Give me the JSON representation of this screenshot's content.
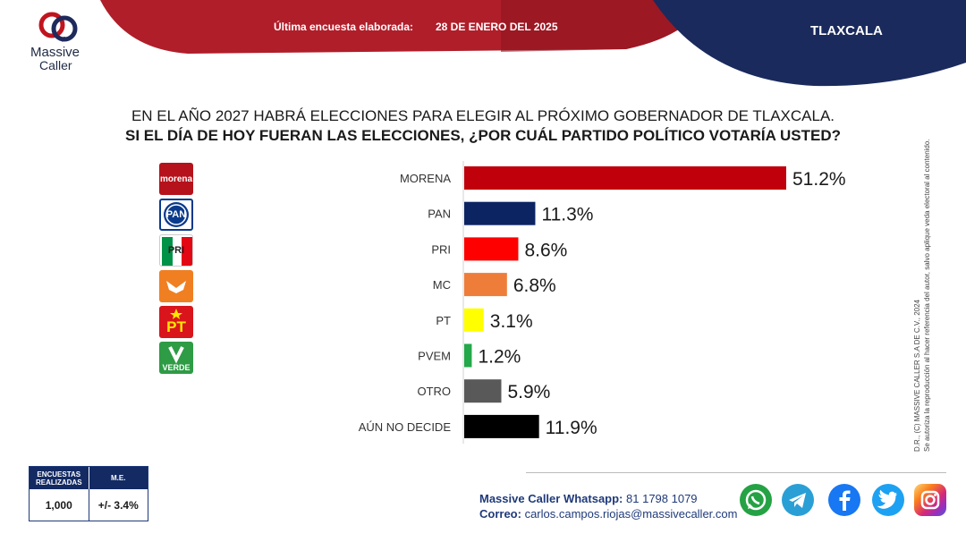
{
  "header": {
    "survey_label": "Última encuesta elaborada:",
    "survey_date": "28 DE ENERO DEL 2025",
    "region": "TLAXCALA"
  },
  "logo": {
    "word1": "Massive",
    "word2": "Caller"
  },
  "question": {
    "line1": "EN EL AÑO 2027 HABRÁ ELECCIONES PARA ELEGIR AL PRÓXIMO GOBERNADOR DE TLAXCALA.",
    "line2": "SI EL DÍA DE HOY FUERAN LAS ELECCIONES, ¿POR CUÁL PARTIDO POLÍTICO VOTARÍA USTED?"
  },
  "party_logos": [
    {
      "name": "morena",
      "text": "morena",
      "color": "#b5121b"
    },
    {
      "name": "pan",
      "text": "PAN",
      "color": "#0a3a8c"
    },
    {
      "name": "pri",
      "text": "PRI",
      "color": "#e30613"
    },
    {
      "name": "mc",
      "text": "",
      "color": "#f07f22"
    },
    {
      "name": "pt",
      "text": "PT",
      "color": "#d9141b"
    },
    {
      "name": "verde",
      "text": "VERDE",
      "color": "#2e9b45"
    }
  ],
  "chart_data": {
    "type": "bar",
    "orientation": "horizontal",
    "categories": [
      "MORENA",
      "PAN",
      "PRI",
      "MC",
      "PT",
      "PVEM",
      "OTRO",
      "AÚN NO DECIDE"
    ],
    "values": [
      51.2,
      11.3,
      8.6,
      6.8,
      3.1,
      1.2,
      5.9,
      11.9
    ],
    "value_labels": [
      "51.2%",
      "11.3%",
      "8.6%",
      "6.8%",
      "3.1%",
      "1.2%",
      "5.9%",
      "11.9%"
    ],
    "colors": [
      "#c0000b",
      "#0d2463",
      "#ff0000",
      "#ef7d3a",
      "#ffff00",
      "#23a84a",
      "#595959",
      "#000000"
    ],
    "xlim": [
      0,
      51.2
    ],
    "grid": false,
    "legend": "none"
  },
  "copyright": {
    "line1": "D.R., (C) MASSIVE CALLER S.A DE C.V., 2024",
    "line2": "Se autoriza la reproducción al hacer referencia del autor, salvo aplique veda electoral al contenido."
  },
  "stats": {
    "col1_header": "ENCUESTAS REALIZADAS",
    "col2_header": "M.E.",
    "col1_value": "1,000",
    "col2_value": "+/- 3.4%"
  },
  "contact": {
    "whatsapp_label": "Massive Caller Whatsapp:",
    "whatsapp_value": "81 1798 1079",
    "email_label": "Correo:",
    "email_value": "carlos.campos.riojas@massivecaller.com"
  },
  "social": [
    {
      "name": "whatsapp",
      "icon": "whatsapp-icon",
      "color": "#25a244"
    },
    {
      "name": "telegram",
      "icon": "telegram-icon",
      "color": "#2a9fd6"
    },
    {
      "name": "facebook",
      "icon": "facebook-icon",
      "color": "#1877f2"
    },
    {
      "name": "twitter",
      "icon": "twitter-icon",
      "color": "#1da1f2"
    },
    {
      "name": "instagram",
      "icon": "instagram-icon",
      "color": "#d62976"
    }
  ]
}
